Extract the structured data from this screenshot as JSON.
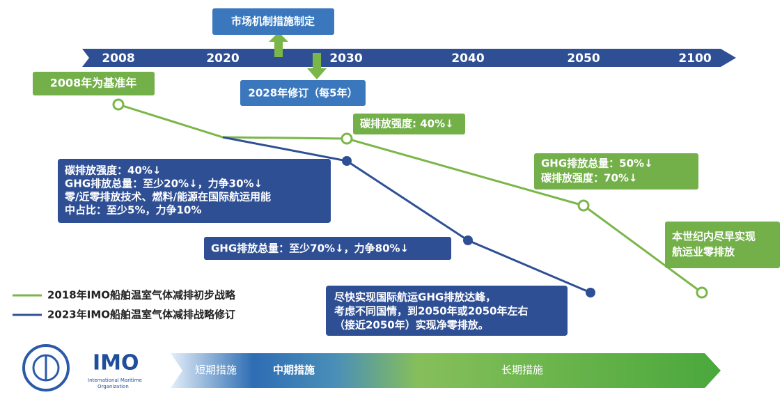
{
  "timeline": {
    "years": [
      "2008",
      "2020",
      "2030",
      "2040",
      "2050",
      "2100"
    ]
  },
  "boxes": {
    "market": "市场机制措施制定",
    "revision": "2028年修订（每5年）",
    "baseline": "2008年为基准年",
    "green_2030": "碳排放强度: 40%↓",
    "blue_2030": [
      "碳排放强度：40%↓",
      "GHG排放总量：至少20%↓，力争30%↓",
      "零/近零排放技术、燃料/能源在国际航运用能",
      "中占比：至少5%，力争10%"
    ],
    "blue_2040": "GHG排放总量：至少70%↓，力争80%↓",
    "green_2050": [
      "GHG排放总量：50%↓",
      "碳排放强度：70%↓"
    ],
    "green_2100": [
      "本世纪内尽早实现",
      "航运业零排放"
    ],
    "blue_2050": [
      "尽快实现国际航运GHG排放达峰，",
      "考虑不同国情，到2050年或2050年左右",
      "（接近2050年）实现净零排放。"
    ]
  },
  "legend": [
    "2018年IMO船舶温室气体减排初步战略",
    "2023年IMO船舶温室气体减排战略修订"
  ],
  "logo": {
    "title": "IMO",
    "subtitle": [
      "International Maritime",
      "Organization"
    ]
  },
  "phases": [
    "短期措施",
    "中期措施",
    "长期措施"
  ]
}
